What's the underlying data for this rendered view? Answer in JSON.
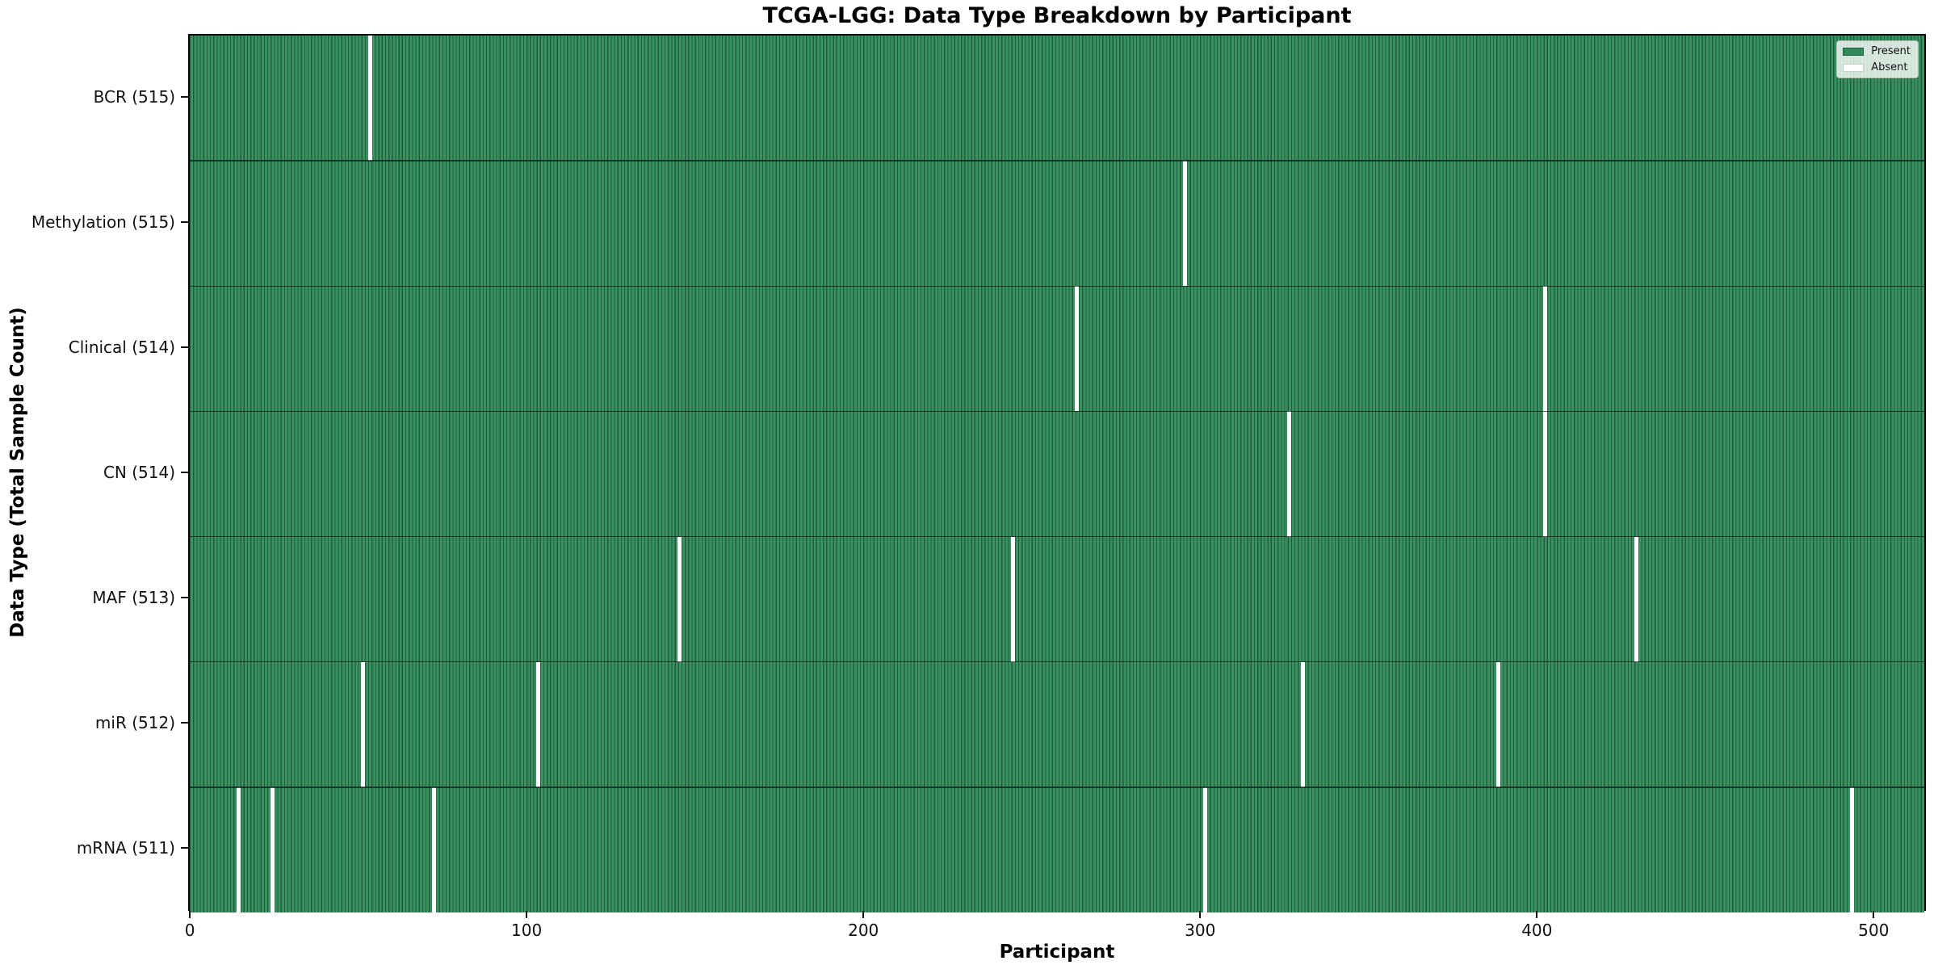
{
  "title": "TCGA-LGG: Data Type Breakdown by Participant",
  "xlabel": "Participant",
  "ylabel": "Data Type (Total Sample Count)",
  "legend": {
    "present_label": "Present",
    "absent_label": "Absent"
  },
  "colors": {
    "present_fill": "#3b9162",
    "present_stripe": "#1f5d3d",
    "absent_fill": "#ffffff",
    "legend_present_swatch": "#2e8b57"
  },
  "chart_data": {
    "type": "heatmap",
    "title": "TCGA-LGG: Data Type Breakdown by Participant",
    "xlabel": "Participant",
    "ylabel": "Data Type (Total Sample Count)",
    "legend": [
      "Present",
      "Absent"
    ],
    "legend_position": "upper right",
    "grid": false,
    "total_participants": 516,
    "x_ticks": [
      0,
      100,
      200,
      300,
      400,
      500
    ],
    "x_range": [
      0,
      515
    ],
    "rows": [
      {
        "data_type": "BCR",
        "label": "BCR (515)",
        "present_count": 515,
        "absent_participants": [
          53
        ]
      },
      {
        "data_type": "Methylation",
        "label": "Methylation (515)",
        "present_count": 515,
        "absent_participants": [
          295
        ]
      },
      {
        "data_type": "Clinical",
        "label": "Clinical (514)",
        "present_count": 514,
        "absent_participants": [
          263,
          402
        ]
      },
      {
        "data_type": "CN",
        "label": "CN (514)",
        "present_count": 514,
        "absent_participants": [
          326,
          402
        ]
      },
      {
        "data_type": "MAF",
        "label": "MAF (513)",
        "present_count": 513,
        "absent_participants": [
          145,
          244,
          429
        ]
      },
      {
        "data_type": "miR",
        "label": "miR (512)",
        "present_count": 512,
        "absent_participants": [
          51,
          103,
          330,
          388
        ]
      },
      {
        "data_type": "mRNA",
        "label": "mRNA (511)",
        "present_count": 511,
        "absent_participants": [
          14,
          24,
          72,
          301,
          493
        ]
      }
    ]
  }
}
